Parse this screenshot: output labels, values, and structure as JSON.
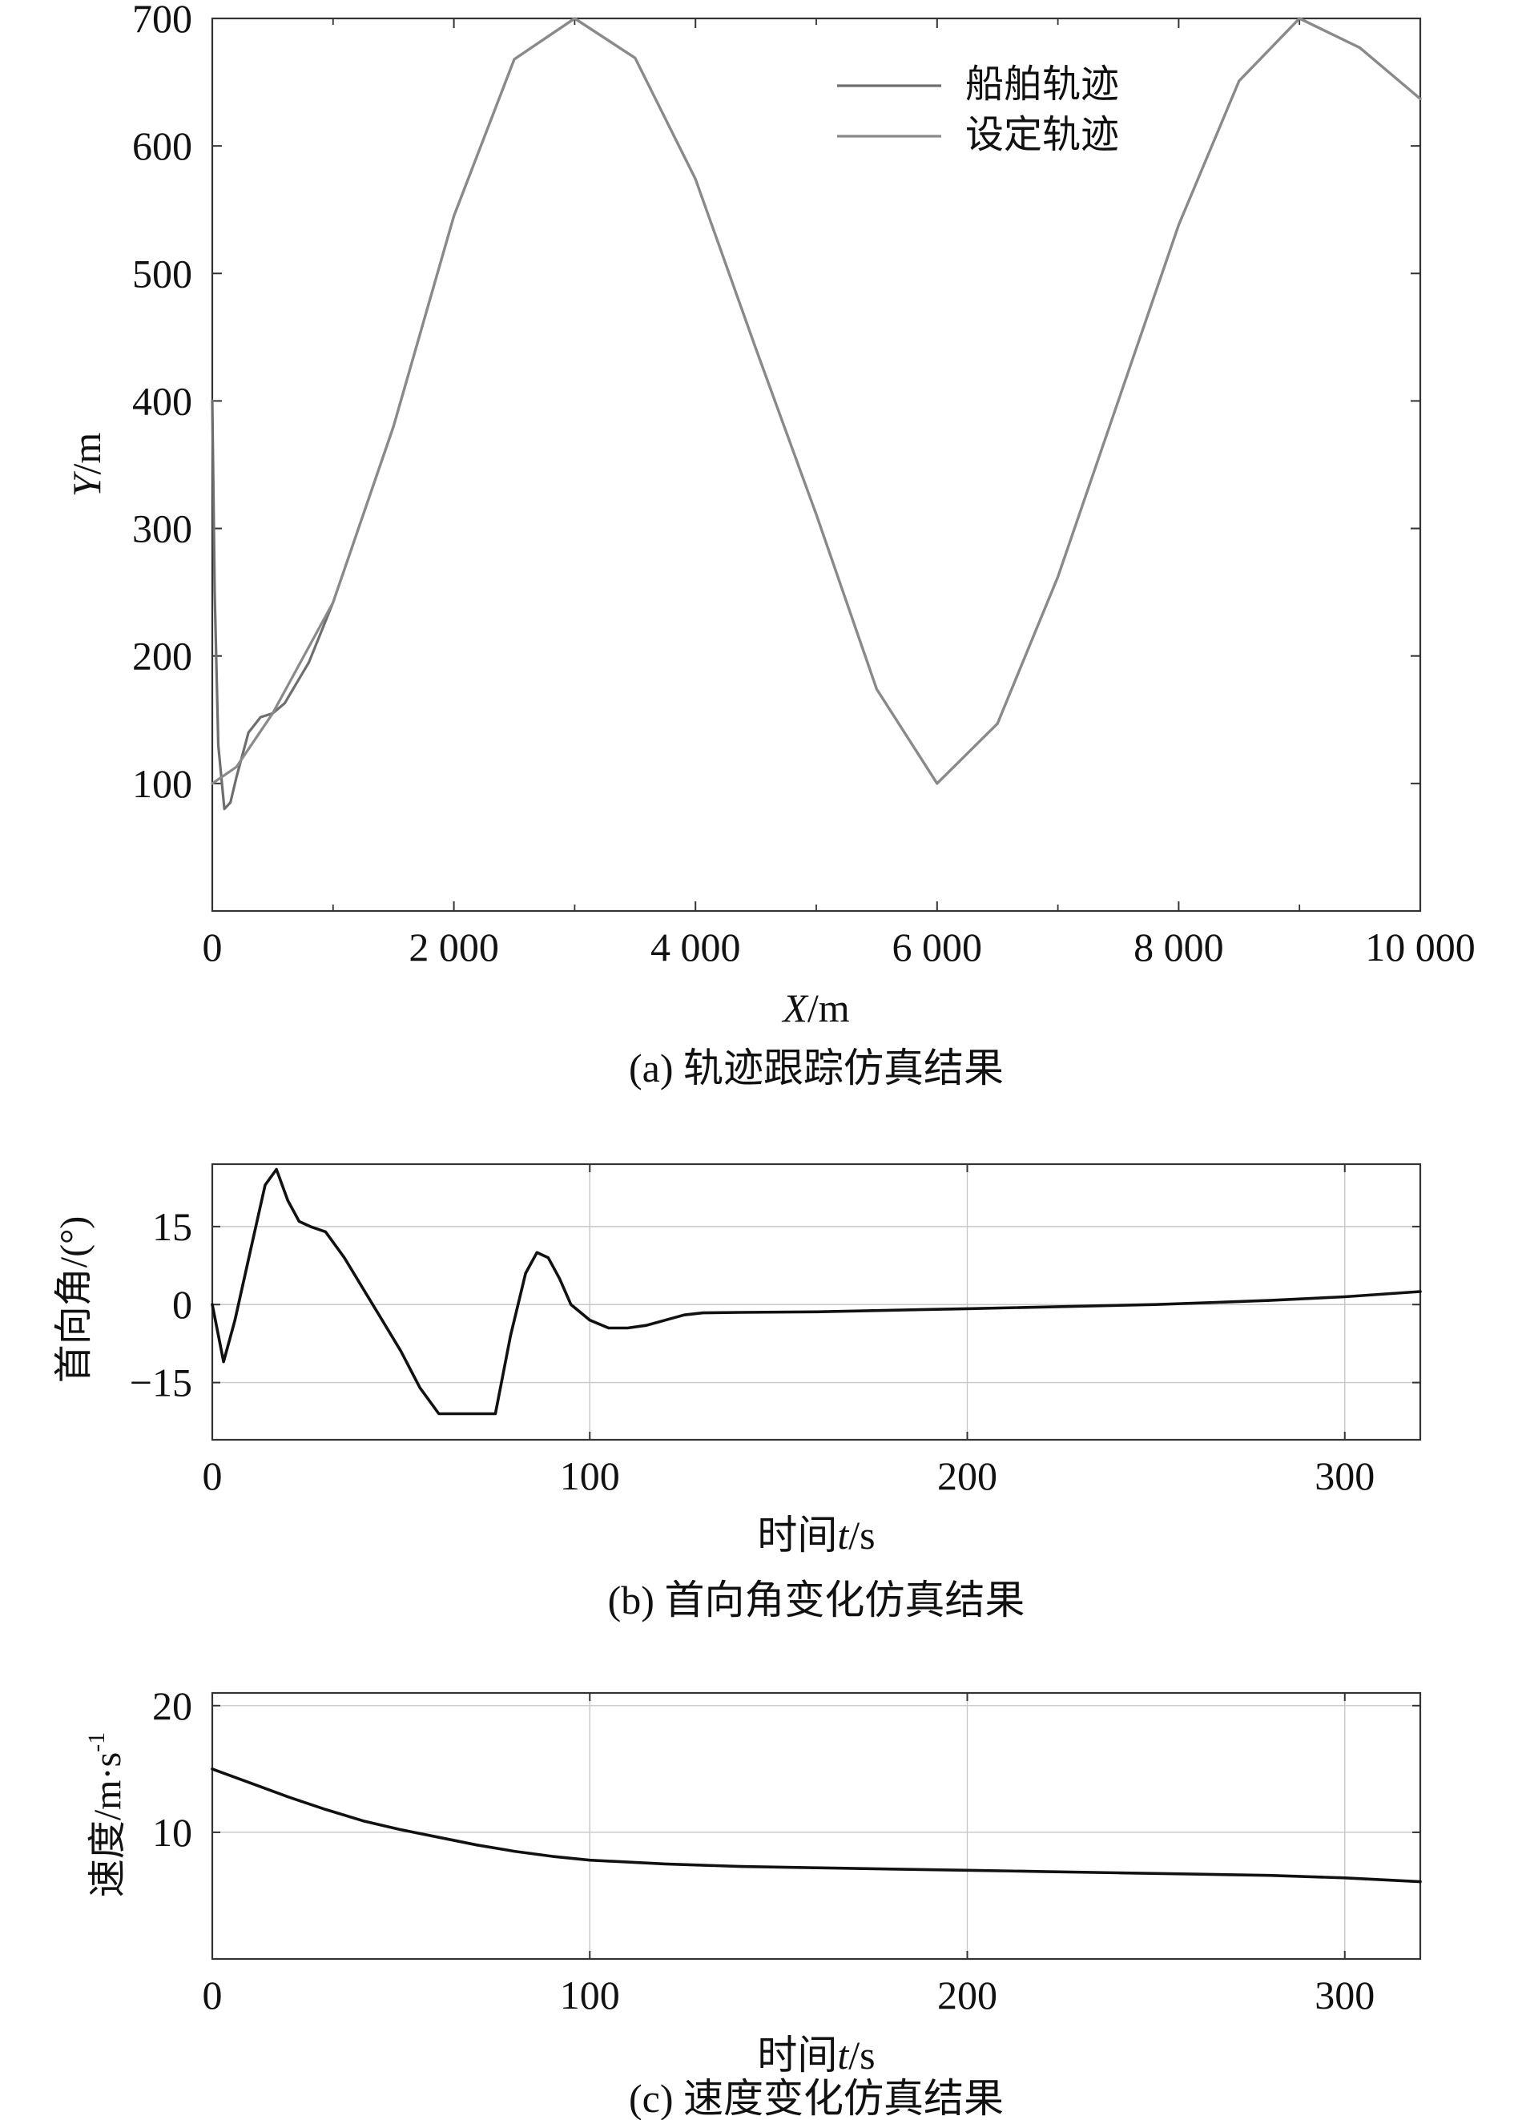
{
  "chart_data": [
    {
      "type": "line",
      "caption": "(a) 轨迹跟踪仿真结果",
      "xlabel_var": "X",
      "xlabel_unit": "/m",
      "ylabel_var": "Y",
      "ylabel_unit": "/m",
      "xlim": [
        0,
        10000
      ],
      "ylim": [
        0,
        700
      ],
      "xticks": [
        0,
        2000,
        4000,
        6000,
        8000,
        10000
      ],
      "xtick_labels": [
        "0",
        "2 000",
        "4 000",
        "6 000",
        "8 000",
        "10 000"
      ],
      "yticks": [
        100,
        200,
        300,
        400,
        500,
        600,
        700
      ],
      "ytick_labels": [
        "100",
        "200",
        "300",
        "400",
        "500",
        "600",
        "700"
      ],
      "grid": false,
      "legend_position": "top-right",
      "colors": {
        "ship": "#6e6e6e",
        "reference": "#8a8a8a"
      },
      "series": [
        {
          "name": "船舶轨迹",
          "x": [
            0,
            20,
            50,
            100,
            150,
            200,
            300,
            400,
            500,
            600,
            800,
            1000,
            1500,
            2000,
            2500,
            3000,
            3500,
            4000,
            4500,
            5000,
            5500,
            6000,
            6500,
            7000,
            7500,
            8000,
            8500,
            9000,
            9500,
            10000
          ],
          "y": [
            400,
            250,
            130,
            80,
            85,
            105,
            140,
            152,
            155,
            163,
            195,
            242,
            380,
            545,
            668,
            700,
            669,
            574,
            441,
            311,
            174,
            100,
            147,
            262,
            400,
            538,
            651,
            700,
            677,
            637
          ]
        },
        {
          "name": "设定轨迹",
          "x": [
            0,
            200,
            500,
            1000,
            1500,
            2000,
            2500,
            3000,
            3500,
            4000,
            4500,
            5000,
            5500,
            6000,
            6500,
            7000,
            7500,
            8000,
            8500,
            9000,
            9500,
            10000
          ],
          "y": [
            100,
            113,
            155,
            242,
            380,
            545,
            668,
            700,
            669,
            574,
            441,
            311,
            174,
            100,
            147,
            262,
            400,
            538,
            651,
            700,
            677,
            637
          ]
        }
      ]
    },
    {
      "type": "line",
      "caption": "(b) 首向角变化仿真结果",
      "xlabel_prefix": "时间",
      "xlabel_var": "t",
      "xlabel_unit": "/s",
      "ylabel": "首向角/(°)",
      "xlim": [
        0,
        320
      ],
      "ylim": [
        -26,
        27
      ],
      "xticks": [
        0,
        100,
        200,
        300
      ],
      "xtick_labels": [
        "0",
        "100",
        "200",
        "300"
      ],
      "yticks": [
        -15,
        0,
        15
      ],
      "ytick_labels": [
        "−15",
        "0",
        "15"
      ],
      "grid": true,
      "series": [
        {
          "x": [
            0,
            3,
            6,
            10,
            14,
            17,
            20,
            23,
            26,
            30,
            35,
            40,
            45,
            50,
            55,
            60,
            65,
            70,
            75,
            79,
            83,
            86,
            89,
            92,
            95,
            100,
            105,
            110,
            115,
            120,
            125,
            130,
            140,
            160,
            200,
            250,
            280,
            300,
            320
          ],
          "y": [
            0,
            -11,
            -3,
            10,
            23,
            26,
            20,
            16,
            15,
            14,
            9,
            3,
            -3,
            -9,
            -16,
            -21,
            -21,
            -21,
            -21,
            -6,
            6,
            10,
            9,
            5,
            0,
            -3,
            -4.5,
            -4.5,
            -4,
            -3,
            -2,
            -1.6,
            -1.5,
            -1.4,
            -0.8,
            0,
            0.8,
            1.5,
            2.5
          ]
        }
      ]
    },
    {
      "type": "line",
      "caption": "(c) 速度变化仿真结果",
      "xlabel_prefix": "时间",
      "xlabel_var": "t",
      "xlabel_unit": "/s",
      "ylabel": "速度/m·s",
      "ylabel_sup": "-1",
      "xlim": [
        0,
        320
      ],
      "ylim": [
        0,
        21
      ],
      "xticks": [
        0,
        100,
        200,
        300
      ],
      "xtick_labels": [
        "0",
        "100",
        "200",
        "300"
      ],
      "yticks": [
        10,
        20
      ],
      "ytick_labels": [
        "10",
        "20"
      ],
      "grid": true,
      "series": [
        {
          "x": [
            0,
            10,
            20,
            30,
            40,
            50,
            60,
            70,
            80,
            90,
            100,
            120,
            140,
            160,
            180,
            200,
            220,
            240,
            260,
            280,
            300,
            320
          ],
          "y": [
            15,
            13.9,
            12.8,
            11.8,
            10.9,
            10.2,
            9.6,
            9.0,
            8.5,
            8.1,
            7.8,
            7.5,
            7.3,
            7.2,
            7.1,
            7.0,
            6.9,
            6.8,
            6.7,
            6.6,
            6.4,
            6.1
          ]
        }
      ]
    }
  ]
}
